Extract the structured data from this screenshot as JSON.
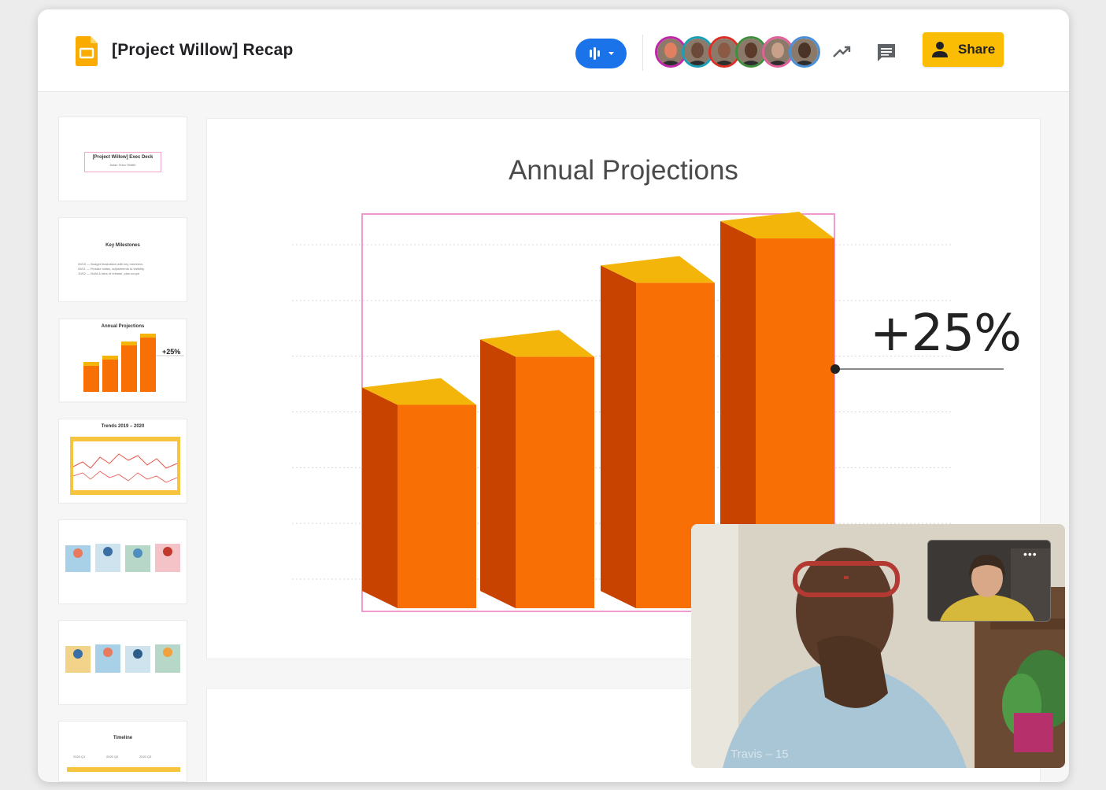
{
  "header": {
    "doc_title": "[Project Willow] Recap",
    "share_label": "Share",
    "participants": [
      {
        "name": "participant-1",
        "ring": "#c026a8",
        "skin": "#e08060"
      },
      {
        "name": "participant-2",
        "ring": "#1a9fb5",
        "skin": "#6b4a3a"
      },
      {
        "name": "participant-3",
        "ring": "#d93025",
        "skin": "#8a5a44"
      },
      {
        "name": "participant-4",
        "ring": "#3f8f3f",
        "skin": "#5a3b2a"
      },
      {
        "name": "participant-5",
        "ring": "#e0609a",
        "skin": "#c9a08a"
      },
      {
        "name": "participant-6",
        "ring": "#4a90d9",
        "skin": "#4a3327"
      }
    ]
  },
  "filmstrip": [
    {
      "kind": "title",
      "title": "[Project Willow] Exec Deck",
      "subtitle": "Asian Telco Health"
    },
    {
      "kind": "milestones",
      "title": "Key Milestones",
      "lines": [
        "09/10 — Budget finalization with key members",
        "09/11 — Finalize slides, adjustments to visibility",
        "10/02 — Build & tabs of release, plan-scope"
      ]
    },
    {
      "kind": "chart",
      "title": "Annual Projections",
      "callout": "+25%"
    },
    {
      "kind": "trends",
      "title": "Trends 2019 – 2020"
    },
    {
      "kind": "illustrations",
      "title": ""
    },
    {
      "kind": "illustrations",
      "title": ""
    },
    {
      "kind": "timeline",
      "title": "Timeline",
      "labels": [
        "2020 Q1",
        "2020 Q2",
        "2020 Q3"
      ]
    }
  ],
  "slide": {
    "title": "Annual Projections",
    "callout": "+25%"
  },
  "chart_data": {
    "type": "bar",
    "title": "Annual Projections",
    "categories": [
      "",
      "",
      "",
      ""
    ],
    "values": [
      55,
      68,
      88,
      100
    ],
    "ylim": [
      0,
      100
    ],
    "grid": true,
    "annotation": "+25%",
    "colors": {
      "front": "#f86f06",
      "side": "#c84200",
      "top": "#f4b50a"
    }
  },
  "call": {
    "name_label": "Travis – 15"
  },
  "colors": {
    "accent": "#1a73e8",
    "share": "#fbbc04",
    "logo": "#f9ab00"
  }
}
